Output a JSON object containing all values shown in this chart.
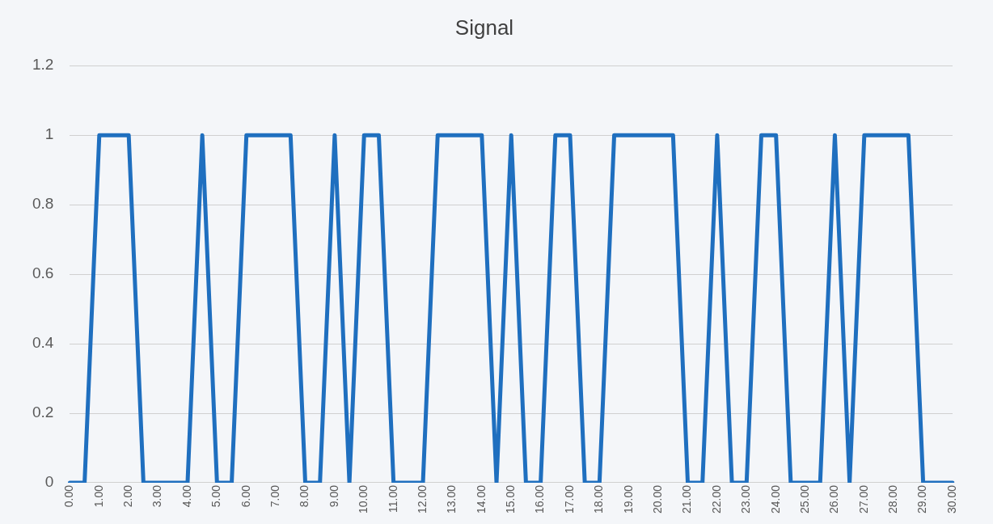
{
  "chart_data": {
    "type": "line",
    "title": "Signal",
    "categories": [
      "0.00",
      null,
      "1.00",
      null,
      "2.00",
      null,
      "3.00",
      null,
      "4.00",
      null,
      "5.00",
      null,
      "6.00",
      null,
      "7.00",
      null,
      "8.00",
      null,
      "9.00",
      null,
      "10.00",
      null,
      "11.00",
      null,
      "12.00",
      null,
      "13.00",
      null,
      "14.00",
      null,
      "15.00",
      null,
      "16.00",
      null,
      "17.00",
      null,
      "18.00",
      null,
      "19.00",
      null,
      "20.00",
      null,
      "21.00",
      null,
      "22.00",
      null,
      "23.00",
      null,
      "24.00",
      null,
      "25.00",
      null,
      "26.00",
      null,
      "27.00",
      null,
      "28.00",
      null,
      "29.00",
      null,
      "30.00"
    ],
    "series": [
      {
        "color": "#1f6fbf",
        "values": [
          0,
          0,
          1,
          1,
          1,
          0,
          0,
          0,
          0,
          1,
          0,
          0,
          1,
          1,
          1,
          1,
          0,
          0,
          1,
          0,
          1,
          1,
          0,
          0,
          0,
          1,
          1,
          1,
          1,
          0,
          1,
          0,
          0,
          1,
          1,
          0,
          0,
          1,
          1,
          1,
          1,
          1,
          0,
          0,
          1,
          0,
          0,
          1,
          1,
          0,
          0,
          0,
          1,
          0,
          1,
          1,
          1,
          1,
          0,
          0,
          0
        ]
      }
    ],
    "ylim": [
      0,
      1.2
    ],
    "yticks": [
      0,
      0.2,
      0.4,
      0.6,
      0.8,
      1,
      1.2
    ],
    "grid": "y",
    "legend": false,
    "marker": "none",
    "line_style": "solid"
  }
}
